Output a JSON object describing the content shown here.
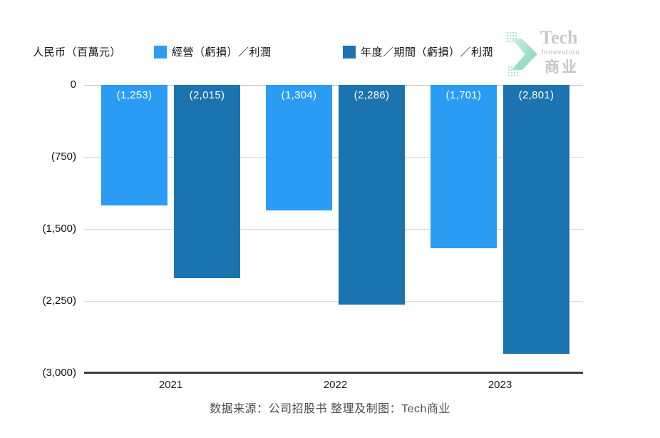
{
  "header": {
    "unit_label": "人民币（百萬元）",
    "legend": [
      {
        "label": "經營（虧損）／利潤",
        "color": "#2b9cf4"
      },
      {
        "label": "年度／期間（虧損）／利潤",
        "color": "#1b73b0"
      }
    ],
    "logo": {
      "line1": "Tech",
      "line2": "Innovation",
      "line3": "商业",
      "arrow_color": "#9fdfca",
      "text_color": "#c9c9c9"
    }
  },
  "chart_data": {
    "type": "bar",
    "title": "",
    "categories": [
      "2021",
      "2022",
      "2023"
    ],
    "series": [
      {
        "name": "經營（虧損）／利潤",
        "color": "#2b9cf4",
        "values": [
          -1253,
          -1304,
          -1701
        ],
        "labels": [
          "(1,253)",
          "(1,304)",
          "(1,701)"
        ]
      },
      {
        "name": "年度／期間（虧損）／利潤",
        "color": "#1b73b0",
        "values": [
          -2015,
          -2286,
          -2801
        ],
        "labels": [
          "(2,015)",
          "(2,286)",
          "(2,801)"
        ]
      }
    ],
    "xlabel": "",
    "ylabel": "人民币（百萬元）",
    "ylim": [
      -3000,
      0
    ],
    "yticks": [
      {
        "value": 0,
        "label": "0"
      },
      {
        "value": -750,
        "label": "(750)"
      },
      {
        "value": -1500,
        "label": "(1,500)"
      },
      {
        "value": -2250,
        "label": "(2,250)"
      },
      {
        "value": -3000,
        "label": "(3,000)"
      }
    ],
    "grid": true,
    "legend_position": "top"
  },
  "footer": {
    "source": "数据来源：公司招股书 整理及制图：Tech商业"
  }
}
